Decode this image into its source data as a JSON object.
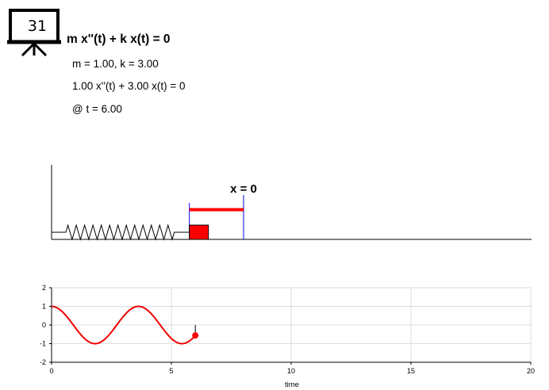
{
  "badge": {
    "number": "31",
    "icon": "presentation-board-icon"
  },
  "equation": {
    "general": "m x''(t) + k x(t) = 0"
  },
  "parameters": {
    "values_line": "m = 1.00, k = 3.00",
    "instance_line": "1.00 x''(t) + 3.00 x(t) = 0",
    "time_line": "@ t = 6.00",
    "m": 1.0,
    "k": 3.0,
    "t": 6.0
  },
  "simulation": {
    "equilibrium_label": "x = 0",
    "displacement": -0.56,
    "colors": {
      "mass": "#ff0000",
      "displacement_bar": "#ff0000",
      "guide_lines": "#0000ff",
      "spring": "#000000"
    }
  },
  "chart_data": {
    "type": "line",
    "xlabel": "time",
    "xlim": [
      0,
      20
    ],
    "ylim": [
      -2,
      2
    ],
    "xticks": [
      "0",
      "5",
      "10",
      "15",
      "20"
    ],
    "yticks": [
      "2",
      "1",
      "0",
      "-1",
      "-2"
    ],
    "grid": true,
    "series": [
      {
        "color": "#ee0000",
        "x": [
          0,
          0.5,
          1,
          1.5,
          2,
          2.5,
          3,
          3.5,
          4,
          4.5,
          5,
          5.5,
          6
        ],
        "y": [
          1.0,
          0.65,
          -0.16,
          -0.86,
          -0.95,
          -0.3,
          0.52,
          0.99,
          0.79,
          0.14,
          -0.65,
          -0.99,
          -0.56
        ]
      }
    ],
    "current_point": {
      "t": 6.0,
      "x": -0.56
    }
  }
}
